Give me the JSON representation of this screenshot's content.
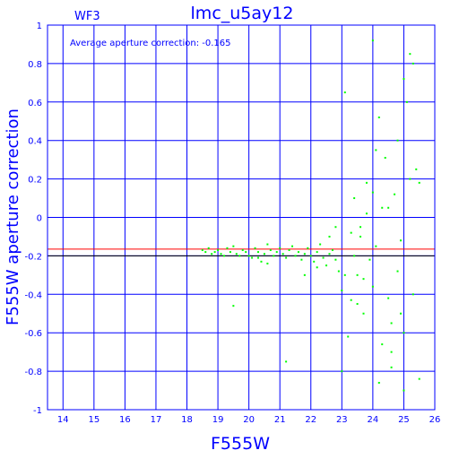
{
  "chart_data": {
    "type": "scatter",
    "title": "lmc_u5ay12",
    "panel_label": "WF3",
    "annotation": "Average aperture correction:  -0.165",
    "xlabel": "F555W",
    "ylabel": "F555W aperture correction",
    "xlim": [
      13.5,
      26
    ],
    "ylim": [
      -1,
      1
    ],
    "x_ticks": [
      14,
      15,
      16,
      17,
      18,
      19,
      20,
      21,
      22,
      23,
      24,
      25,
      26
    ],
    "y_ticks": [
      -1,
      -0.8,
      -0.6,
      -0.4,
      -0.2,
      0,
      0.2,
      0.4,
      0.6,
      0.8,
      1
    ],
    "grid": true,
    "reference_lines": [
      {
        "y": -0.165,
        "color": "#ff0000"
      },
      {
        "y": -0.2,
        "color": "#000000"
      }
    ],
    "point_color": "#00ff00",
    "axis_color": "#0000ff",
    "points": [
      [
        18.5,
        -0.17
      ],
      [
        18.6,
        -0.18
      ],
      [
        18.7,
        -0.16
      ],
      [
        18.8,
        -0.19
      ],
      [
        18.9,
        -0.18
      ],
      [
        19.0,
        -0.17
      ],
      [
        19.1,
        -0.19
      ],
      [
        19.2,
        -0.2
      ],
      [
        19.3,
        -0.16
      ],
      [
        19.4,
        -0.18
      ],
      [
        19.5,
        -0.15
      ],
      [
        19.6,
        -0.19
      ],
      [
        19.7,
        -0.2
      ],
      [
        19.8,
        -0.17
      ],
      [
        19.9,
        -0.18
      ],
      [
        20.0,
        -0.2
      ],
      [
        20.1,
        -0.21
      ],
      [
        20.2,
        -0.16
      ],
      [
        20.3,
        -0.18
      ],
      [
        20.4,
        -0.23
      ],
      [
        20.5,
        -0.19
      ],
      [
        20.6,
        -0.14
      ],
      [
        20.7,
        -0.17
      ],
      [
        20.8,
        -0.2
      ],
      [
        20.9,
        -0.18
      ],
      [
        21.0,
        -0.16
      ],
      [
        21.1,
        -0.19
      ],
      [
        21.2,
        -0.21
      ],
      [
        21.3,
        -0.17
      ],
      [
        21.4,
        -0.15
      ],
      [
        21.5,
        -0.2
      ],
      [
        21.6,
        -0.18
      ],
      [
        21.7,
        -0.22
      ],
      [
        21.8,
        -0.19
      ],
      [
        21.9,
        -0.16
      ],
      [
        22.0,
        -0.2
      ],
      [
        22.1,
        -0.23
      ],
      [
        22.2,
        -0.18
      ],
      [
        22.3,
        -0.14
      ],
      [
        22.4,
        -0.21
      ],
      [
        22.5,
        -0.25
      ],
      [
        22.6,
        -0.19
      ],
      [
        22.7,
        -0.17
      ],
      [
        22.8,
        -0.22
      ],
      [
        22.9,
        -0.28
      ],
      [
        19.5,
        -0.46
      ],
      [
        20.3,
        -0.21
      ],
      [
        20.6,
        -0.24
      ],
      [
        21.2,
        -0.75
      ],
      [
        21.8,
        -0.3
      ],
      [
        22.2,
        -0.26
      ],
      [
        22.6,
        -0.1
      ],
      [
        22.8,
        -0.05
      ],
      [
        23.0,
        -0.8
      ],
      [
        23.0,
        -0.38
      ],
      [
        23.1,
        0.65
      ],
      [
        23.2,
        -0.62
      ],
      [
        23.3,
        -0.43
      ],
      [
        23.4,
        0.1
      ],
      [
        23.5,
        -0.3
      ],
      [
        23.6,
        -0.05
      ],
      [
        23.7,
        -0.5
      ],
      [
        23.8,
        0.18
      ],
      [
        23.9,
        -0.22
      ],
      [
        24.0,
        0.92
      ],
      [
        24.0,
        -0.36
      ],
      [
        24.1,
        -0.15
      ],
      [
        24.2,
        0.52
      ],
      [
        24.3,
        -0.66
      ],
      [
        24.4,
        0.31
      ],
      [
        24.5,
        -0.42
      ],
      [
        24.5,
        0.05
      ],
      [
        24.6,
        -0.7
      ],
      [
        24.7,
        0.12
      ],
      [
        24.8,
        -0.28
      ],
      [
        24.9,
        -0.5
      ],
      [
        25.0,
        0.72
      ],
      [
        25.0,
        -0.9
      ],
      [
        25.1,
        0.6
      ],
      [
        25.2,
        0.85
      ],
      [
        25.3,
        0.8
      ],
      [
        25.4,
        0.25
      ],
      [
        25.5,
        -0.84
      ],
      [
        25.5,
        0.18
      ],
      [
        23.4,
        -0.2
      ],
      [
        23.6,
        -0.1
      ],
      [
        23.8,
        0.02
      ],
      [
        24.1,
        0.35
      ],
      [
        24.3,
        0.05
      ],
      [
        24.6,
        -0.55
      ],
      [
        24.8,
        0.4
      ],
      [
        25.0,
        -0.6
      ],
      [
        25.3,
        -0.4
      ],
      [
        23.1,
        -0.3
      ],
      [
        23.3,
        -0.08
      ],
      [
        23.7,
        -0.32
      ],
      [
        24.2,
        -0.86
      ],
      [
        24.6,
        -0.78
      ],
      [
        24.9,
        -0.12
      ],
      [
        25.2,
        0.2
      ],
      [
        24.0,
        0.13
      ],
      [
        23.5,
        -0.45
      ]
    ]
  }
}
